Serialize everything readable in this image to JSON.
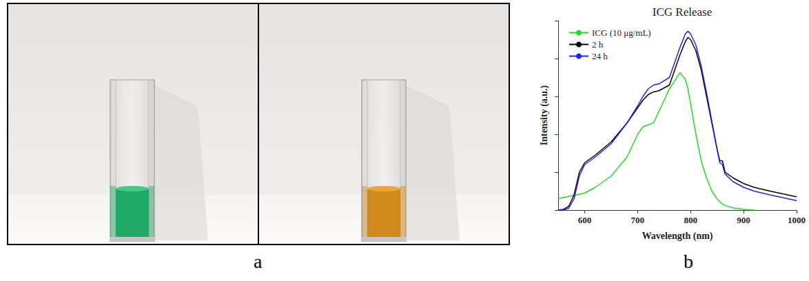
{
  "figure": {
    "panel_labels": [
      "a",
      "b"
    ]
  },
  "chart_data": {
    "type": "line",
    "title": "ICG Release",
    "x_label": "Wavelength (nm)",
    "y_label": "Intensity (a.u.)",
    "x": [
      550,
      560,
      570,
      580,
      590,
      600,
      620,
      650,
      680,
      700,
      710,
      720,
      730,
      740,
      760,
      780,
      790,
      795,
      800,
      810,
      820,
      830,
      840,
      850,
      855,
      860,
      865,
      880,
      900,
      920,
      950,
      1000
    ],
    "series": [
      {
        "name": "ICG (10 μg/mL)",
        "color": "#22dd22",
        "values": [
          0.3,
          0.33,
          0.36,
          0.39,
          0.42,
          0.45,
          0.6,
          0.9,
          1.4,
          2.0,
          2.2,
          2.25,
          2.3,
          2.6,
          3.2,
          3.63,
          3.45,
          3.2,
          2.8,
          2.0,
          1.3,
          0.85,
          0.5,
          0.3,
          0.22,
          0.16,
          0.12,
          0.06,
          0.02,
          0,
          null,
          null
        ]
      },
      {
        "name": "2 h",
        "color": "#000000",
        "values": [
          0,
          0.02,
          0.1,
          0.4,
          1.0,
          1.25,
          1.45,
          1.8,
          2.3,
          2.7,
          2.9,
          3.05,
          3.12,
          3.15,
          3.3,
          4.1,
          4.45,
          4.56,
          4.5,
          4.2,
          3.7,
          3.0,
          2.3,
          1.6,
          1.3,
          1.3,
          1.0,
          0.85,
          0.7,
          0.6,
          0.5,
          0.35
        ]
      },
      {
        "name": "24 h",
        "color": "#2222ee",
        "values": [
          0,
          0,
          0.05,
          0.3,
          0.9,
          1.2,
          1.4,
          1.75,
          2.3,
          2.75,
          3.0,
          3.2,
          3.3,
          3.33,
          3.5,
          4.3,
          4.65,
          4.72,
          4.65,
          4.35,
          3.8,
          3.1,
          2.35,
          1.6,
          1.25,
          1.2,
          0.95,
          0.75,
          0.6,
          0.5,
          0.4,
          0.25
        ]
      }
    ],
    "xlim": [
      550,
      1000
    ],
    "xticks": [
      600,
      700,
      800,
      900,
      1000
    ],
    "ylim": [
      0,
      5
    ],
    "yticks": [
      0,
      1,
      2,
      3,
      4,
      5
    ],
    "tick_labels": "x",
    "legend": "top-left",
    "grid": false
  }
}
